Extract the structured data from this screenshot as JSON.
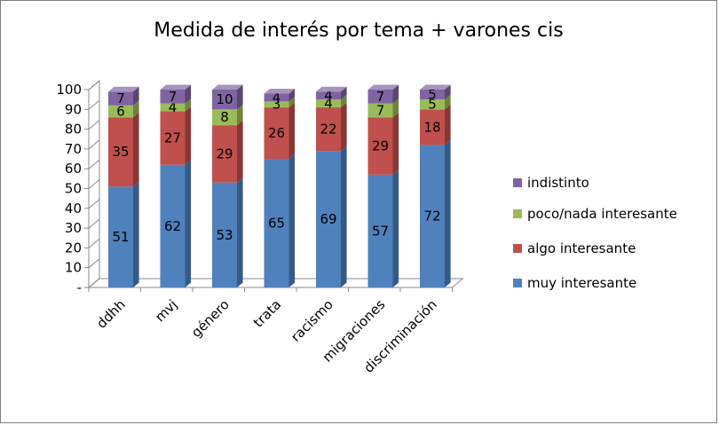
{
  "chart_data": {
    "type": "bar",
    "stacked": true,
    "three_d": true,
    "title": "Medida de interés por tema + varones cis",
    "categories": [
      "ddhh",
      "mvj",
      "género",
      "trata",
      "racismo",
      "migraciones",
      "discriminación"
    ],
    "series": [
      {
        "name": "muy interesante",
        "color": "#4F81BD",
        "values": [
          51,
          62,
          53,
          65,
          69,
          57,
          72
        ]
      },
      {
        "name": "algo interesante",
        "color": "#C0504D",
        "values": [
          35,
          27,
          29,
          26,
          22,
          29,
          18
        ]
      },
      {
        "name": "poco/nada interesante",
        "color": "#9BBB59",
        "values": [
          6,
          4,
          8,
          3,
          4,
          7,
          5
        ]
      },
      {
        "name": "indistinto",
        "color": "#8064A2",
        "values": [
          7,
          7,
          10,
          4,
          4,
          7,
          5
        ]
      }
    ],
    "y_ticks": [
      "-",
      "10",
      "20",
      "30",
      "40",
      "50",
      "60",
      "70",
      "80",
      "90",
      "100"
    ],
    "ylim": [
      0,
      100
    ],
    "legend_position": "right",
    "legend_order": [
      "indistinto",
      "poco/nada interesante",
      "algo interesante",
      "muy interesante"
    ],
    "grid": false
  }
}
